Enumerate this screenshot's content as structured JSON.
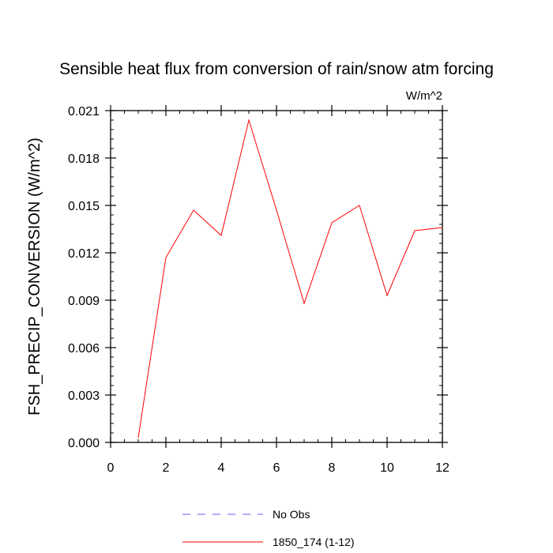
{
  "chart_data": {
    "type": "line",
    "title": "Sensible heat flux from conversion of rain/snow atm forcing",
    "units_label": "W/m^2",
    "xlabel": "",
    "ylabel": "FSH_PRECIP_CONVERSION  (W/m^2)",
    "xlim": [
      0,
      12
    ],
    "ylim": [
      0.0,
      0.021
    ],
    "xticks": [
      0,
      2,
      4,
      6,
      8,
      10,
      12
    ],
    "xtick_labels": [
      "0",
      "2",
      "4",
      "6",
      "8",
      "10",
      "12"
    ],
    "yticks": [
      0.0,
      0.003,
      0.006,
      0.009,
      0.012,
      0.015,
      0.018,
      0.021
    ],
    "ytick_labels": [
      "0.000",
      "0.003",
      "0.006",
      "0.009",
      "0.012",
      "0.015",
      "0.018",
      "0.021"
    ],
    "grid": false,
    "legend_position": "bottom",
    "series": [
      {
        "name": "1850_174 (1-12)",
        "color": "#ff0000",
        "style": "solid",
        "x": [
          1,
          2,
          3,
          4,
          5,
          6,
          7,
          8,
          9,
          10,
          11,
          12
        ],
        "y": [
          0.0003,
          0.0117,
          0.0147,
          0.0131,
          0.0204,
          0.0147,
          0.0088,
          0.0139,
          0.015,
          0.0093,
          0.0134,
          0.0136
        ]
      }
    ],
    "legend": [
      {
        "label": "No Obs",
        "color": "#6666ff",
        "style": "dashed"
      },
      {
        "label": "1850_174 (1-12)",
        "color": "#ff0000",
        "style": "solid"
      }
    ]
  }
}
